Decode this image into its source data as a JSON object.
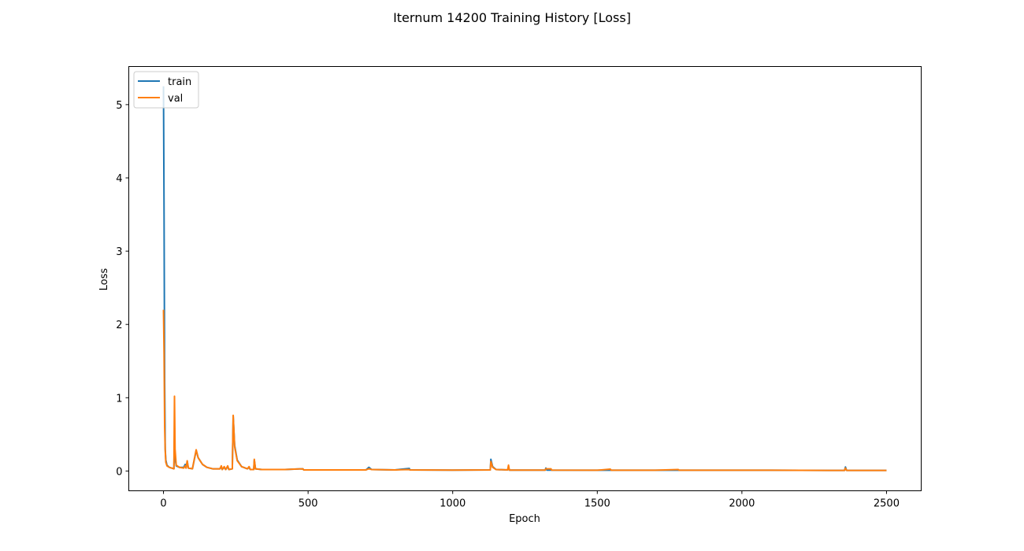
{
  "chart_data": {
    "type": "line",
    "title": "Iternum 14200 Training History [Loss]",
    "xlabel": "Epoch",
    "ylabel": "Loss",
    "xlim": [
      -120,
      2620
    ],
    "ylim": [
      -0.27,
      5.52
    ],
    "xticks": [
      0,
      500,
      1000,
      1500,
      2000,
      2500
    ],
    "xtick_labels": [
      "0",
      "500",
      "1000",
      "1500",
      "2000",
      "2500"
    ],
    "yticks": [
      0,
      1,
      2,
      3,
      4,
      5
    ],
    "ytick_labels": [
      "0",
      "1",
      "2",
      "3",
      "4",
      "5"
    ],
    "grid": false,
    "legend_position": "upper-left",
    "series": [
      {
        "name": "train",
        "color": "#1f77b4",
        "points": [
          [
            0,
            5.25
          ],
          [
            2,
            3.5
          ],
          [
            4,
            1.2
          ],
          [
            6,
            0.3
          ],
          [
            8,
            0.15
          ],
          [
            12,
            0.08
          ],
          [
            20,
            0.05
          ],
          [
            36,
            0.03
          ],
          [
            38,
            0.5
          ],
          [
            40,
            0.18
          ],
          [
            44,
            0.07
          ],
          [
            55,
            0.05
          ],
          [
            70,
            0.05
          ],
          [
            75,
            0.09
          ],
          [
            78,
            0.04
          ],
          [
            82,
            0.13
          ],
          [
            86,
            0.04
          ],
          [
            100,
            0.03
          ],
          [
            113,
            0.28
          ],
          [
            120,
            0.18
          ],
          [
            135,
            0.09
          ],
          [
            150,
            0.05
          ],
          [
            170,
            0.03
          ],
          [
            195,
            0.03
          ],
          [
            200,
            0.06
          ],
          [
            203,
            0.02
          ],
          [
            210,
            0.05
          ],
          [
            215,
            0.02
          ],
          [
            222,
            0.06
          ],
          [
            226,
            0.02
          ],
          [
            238,
            0.03
          ],
          [
            241,
            0.75
          ],
          [
            246,
            0.35
          ],
          [
            255,
            0.15
          ],
          [
            270,
            0.06
          ],
          [
            290,
            0.03
          ],
          [
            296,
            0.05
          ],
          [
            300,
            0.02
          ],
          [
            312,
            0.02
          ],
          [
            314,
            0.15
          ],
          [
            318,
            0.03
          ],
          [
            340,
            0.02
          ],
          [
            420,
            0.02
          ],
          [
            482,
            0.03
          ],
          [
            485,
            0.015
          ],
          [
            600,
            0.015
          ],
          [
            700,
            0.015
          ],
          [
            710,
            0.05
          ],
          [
            720,
            0.02
          ],
          [
            800,
            0.015
          ],
          [
            850,
            0.035
          ],
          [
            852,
            0.015
          ],
          [
            1000,
            0.012
          ],
          [
            1130,
            0.015
          ],
          [
            1132,
            0.16
          ],
          [
            1138,
            0.06
          ],
          [
            1150,
            0.02
          ],
          [
            1190,
            0.015
          ],
          [
            1193,
            0.06
          ],
          [
            1196,
            0.012
          ],
          [
            1320,
            0.012
          ],
          [
            1322,
            0.04
          ],
          [
            1326,
            0.012
          ],
          [
            1500,
            0.01
          ],
          [
            1700,
            0.01
          ],
          [
            1900,
            0.01
          ],
          [
            2100,
            0.01
          ],
          [
            2300,
            0.008
          ],
          [
            2355,
            0.008
          ],
          [
            2358,
            0.055
          ],
          [
            2362,
            0.008
          ],
          [
            2500,
            0.008
          ]
        ]
      },
      {
        "name": "val",
        "color": "#ff7f0e",
        "points": [
          [
            0,
            2.2
          ],
          [
            2,
            1.6
          ],
          [
            4,
            0.6
          ],
          [
            6,
            0.28
          ],
          [
            8,
            0.12
          ],
          [
            12,
            0.07
          ],
          [
            20,
            0.05
          ],
          [
            36,
            0.03
          ],
          [
            38,
            1.02
          ],
          [
            40,
            0.3
          ],
          [
            44,
            0.08
          ],
          [
            55,
            0.05
          ],
          [
            70,
            0.04
          ],
          [
            75,
            0.07
          ],
          [
            78,
            0.04
          ],
          [
            82,
            0.14
          ],
          [
            86,
            0.04
          ],
          [
            100,
            0.03
          ],
          [
            113,
            0.29
          ],
          [
            120,
            0.18
          ],
          [
            135,
            0.09
          ],
          [
            150,
            0.05
          ],
          [
            170,
            0.03
          ],
          [
            195,
            0.03
          ],
          [
            200,
            0.07
          ],
          [
            203,
            0.02
          ],
          [
            210,
            0.06
          ],
          [
            215,
            0.02
          ],
          [
            222,
            0.07
          ],
          [
            226,
            0.02
          ],
          [
            238,
            0.03
          ],
          [
            241,
            0.76
          ],
          [
            246,
            0.33
          ],
          [
            255,
            0.14
          ],
          [
            270,
            0.06
          ],
          [
            290,
            0.03
          ],
          [
            296,
            0.06
          ],
          [
            300,
            0.02
          ],
          [
            312,
            0.02
          ],
          [
            314,
            0.16
          ],
          [
            318,
            0.03
          ],
          [
            340,
            0.02
          ],
          [
            420,
            0.02
          ],
          [
            482,
            0.03
          ],
          [
            485,
            0.015
          ],
          [
            600,
            0.015
          ],
          [
            700,
            0.015
          ],
          [
            710,
            0.03
          ],
          [
            720,
            0.02
          ],
          [
            800,
            0.015
          ],
          [
            850,
            0.02
          ],
          [
            852,
            0.015
          ],
          [
            1000,
            0.012
          ],
          [
            1130,
            0.015
          ],
          [
            1132,
            0.13
          ],
          [
            1138,
            0.05
          ],
          [
            1150,
            0.02
          ],
          [
            1190,
            0.015
          ],
          [
            1193,
            0.08
          ],
          [
            1196,
            0.012
          ],
          [
            1320,
            0.012
          ],
          [
            1322,
            0.03
          ],
          [
            1340,
            0.03
          ],
          [
            1342,
            0.012
          ],
          [
            1500,
            0.01
          ],
          [
            1545,
            0.025
          ],
          [
            1548,
            0.01
          ],
          [
            1700,
            0.01
          ],
          [
            1780,
            0.02
          ],
          [
            1783,
            0.01
          ],
          [
            1900,
            0.01
          ],
          [
            2100,
            0.01
          ],
          [
            2300,
            0.008
          ],
          [
            2355,
            0.008
          ],
          [
            2358,
            0.04
          ],
          [
            2362,
            0.008
          ],
          [
            2500,
            0.008
          ]
        ]
      }
    ]
  }
}
